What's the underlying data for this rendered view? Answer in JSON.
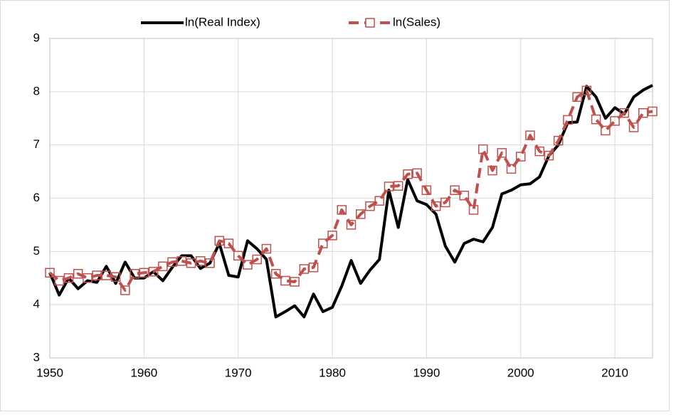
{
  "chart_data": {
    "type": "line",
    "x": [
      1950,
      1951,
      1952,
      1953,
      1954,
      1955,
      1956,
      1957,
      1958,
      1959,
      1960,
      1961,
      1962,
      1963,
      1964,
      1965,
      1966,
      1967,
      1968,
      1969,
      1970,
      1971,
      1972,
      1973,
      1974,
      1975,
      1976,
      1977,
      1978,
      1979,
      1980,
      1981,
      1982,
      1983,
      1984,
      1985,
      1986,
      1987,
      1988,
      1989,
      1990,
      1991,
      1992,
      1993,
      1994,
      1995,
      1996,
      1997,
      1998,
      1999,
      2000,
      2001,
      2002,
      2003,
      2004,
      2005,
      2006,
      2007,
      2008,
      2009,
      2010,
      2011,
      2012,
      2013,
      2014
    ],
    "series": [
      {
        "name": "ln(Real Index)",
        "color": "#000000",
        "values": [
          4.6,
          4.18,
          4.5,
          4.3,
          4.45,
          4.42,
          4.72,
          4.4,
          4.8,
          4.5,
          4.5,
          4.62,
          4.45,
          4.7,
          4.92,
          4.92,
          4.68,
          4.78,
          5.15,
          4.55,
          4.52,
          5.2,
          5.05,
          4.85,
          3.77,
          3.87,
          3.98,
          3.77,
          4.2,
          3.87,
          3.95,
          4.35,
          4.83,
          4.4,
          4.65,
          4.85,
          6.15,
          5.45,
          6.35,
          5.95,
          5.88,
          5.7,
          5.1,
          4.8,
          5.15,
          5.23,
          5.18,
          5.45,
          6.08,
          6.15,
          6.25,
          6.27,
          6.4,
          6.8,
          7.0,
          7.42,
          7.43,
          8.1,
          7.9,
          7.5,
          7.7,
          7.58,
          7.9,
          8.03,
          8.12
        ]
      },
      {
        "name": "ln(Sales)",
        "color": "#c0504d",
        "values": [
          4.6,
          4.45,
          4.5,
          4.58,
          4.5,
          4.55,
          4.55,
          4.52,
          4.27,
          4.58,
          4.6,
          4.62,
          4.72,
          4.8,
          4.82,
          4.78,
          4.82,
          4.78,
          5.2,
          5.15,
          4.92,
          4.75,
          4.85,
          5.05,
          4.58,
          4.45,
          4.43,
          4.67,
          4.7,
          5.15,
          5.3,
          5.78,
          5.5,
          5.7,
          5.85,
          5.95,
          6.22,
          6.23,
          6.45,
          6.47,
          6.15,
          5.85,
          5.92,
          6.15,
          6.05,
          5.78,
          6.92,
          6.52,
          6.85,
          6.55,
          6.78,
          7.18,
          6.88,
          6.8,
          7.08,
          7.47,
          7.9,
          8.02,
          7.48,
          7.27,
          7.45,
          7.6,
          7.33,
          7.6,
          7.63
        ]
      }
    ],
    "xlim": [
      1950,
      2014
    ],
    "xticks": [
      1950,
      1960,
      1970,
      1980,
      1990,
      2000,
      2010
    ],
    "ylim": [
      3,
      9
    ],
    "yticks": [
      3,
      4,
      5,
      6,
      7,
      8,
      9
    ],
    "grid": true,
    "legend": "top"
  }
}
